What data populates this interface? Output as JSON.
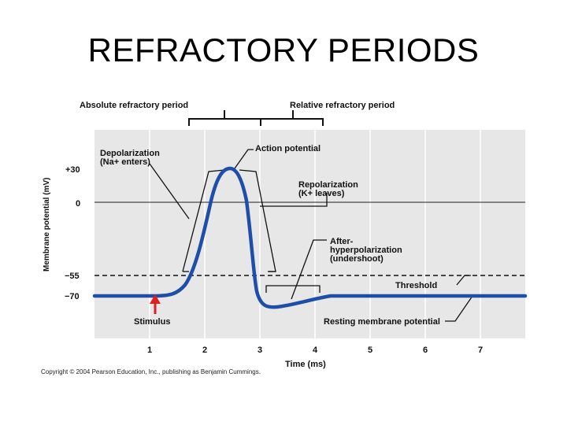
{
  "slide": {
    "title": "REFRACTORY PERIODS",
    "copyright": "Copyright © 2004 Pearson Education, Inc., publishing as Benjamin Cummings."
  },
  "diagram": {
    "top_labels": {
      "absolute": "Absolute refractory period",
      "relative": "Relative refractory period"
    },
    "annotations": {
      "depolarization_1": "Depolarization",
      "depolarization_2": "(Na+ enters)",
      "action_potential": "Action potential",
      "repolarization_1": "Repolarization",
      "repolarization_2": "(K+ leaves)",
      "after_1": "After-",
      "after_2": "hyperpolarization",
      "after_3": "(undershoot)",
      "threshold": "Threshold",
      "stimulus": "Stimulus",
      "resting": "Resting membrane potential"
    },
    "y_axis_label": "Membrane potential (mV)",
    "y_ticks": [
      "+30",
      "0",
      "−55",
      "−70"
    ],
    "x_axis_label": "Time (ms)",
    "x_ticks": [
      "1",
      "2",
      "3",
      "4",
      "5",
      "6",
      "7"
    ],
    "colors": {
      "curve": "#1f4ea8",
      "stimulus_arrow": "#e02020",
      "plot_bg": "#e7e7e7",
      "grid": "#ffffff"
    }
  }
}
